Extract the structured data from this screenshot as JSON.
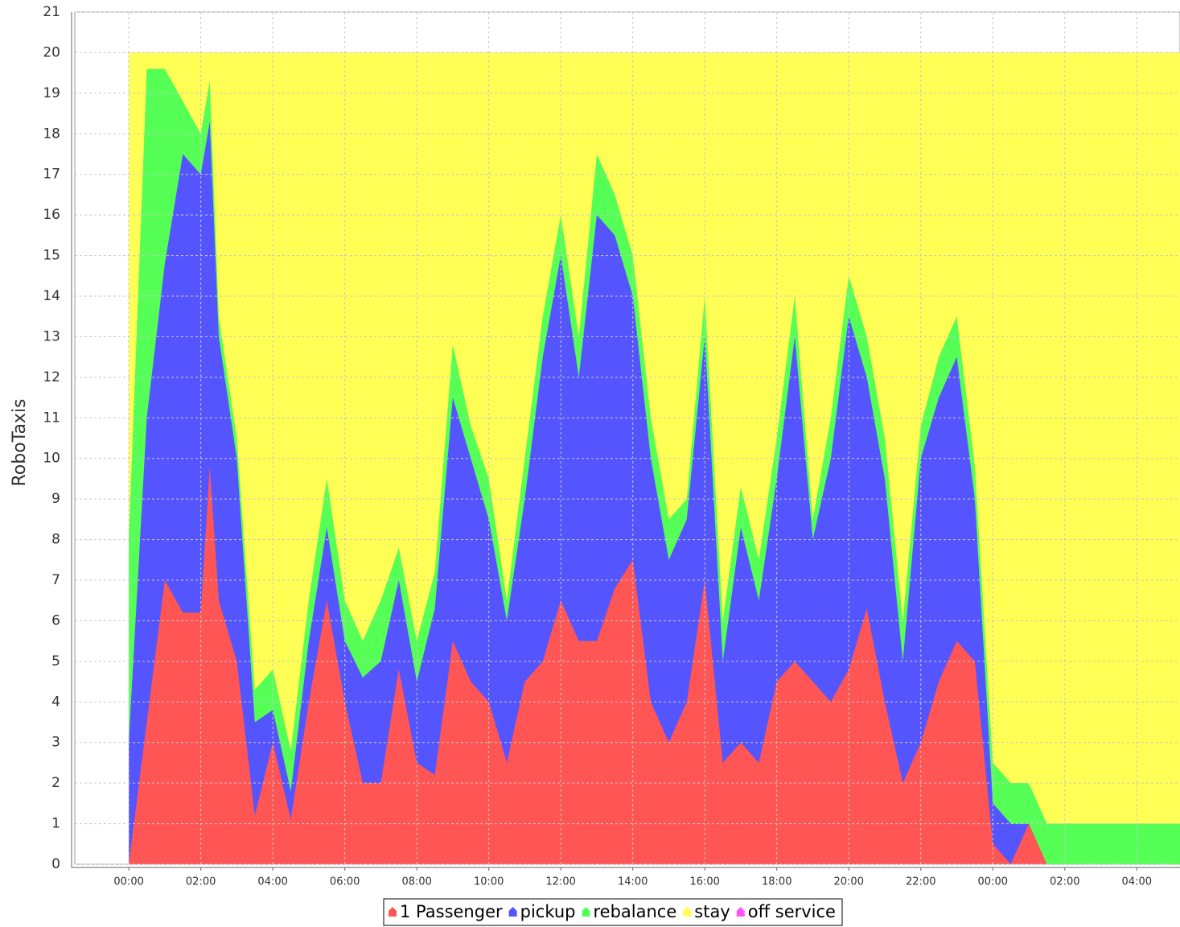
{
  "chart_data": {
    "type": "stacked-area",
    "y_label": "RoboTaxis",
    "x": [
      0,
      0.5,
      1,
      1.5,
      2,
      2.25,
      2.5,
      3,
      3.5,
      4,
      4.5,
      5,
      5.5,
      6,
      6.5,
      7,
      7.5,
      8,
      8.5,
      9,
      9.5,
      10,
      10.5,
      11,
      11.5,
      12,
      12.5,
      13,
      13.5,
      14,
      14.5,
      15,
      15.5,
      16,
      16.5,
      17,
      17.5,
      18,
      18.5,
      19,
      19.5,
      20,
      20.5,
      21,
      21.5,
      22,
      22.5,
      23,
      23.5,
      24,
      24.5,
      25,
      25.5,
      26,
      26.5,
      27,
      27.5,
      28,
      28.5,
      29,
      29.2
    ],
    "series": [
      {
        "name": "1 Passenger",
        "color": "#ff5555",
        "values": [
          0,
          3.5,
          7,
          6.2,
          6.2,
          9.8,
          6.5,
          5,
          1.2,
          3,
          1.1,
          4,
          6.5,
          4,
          2,
          2,
          4.8,
          2.5,
          2.2,
          5.5,
          4.5,
          4,
          2.5,
          4.5,
          5,
          6.5,
          5.5,
          5.5,
          6.8,
          7.5,
          4,
          3,
          4,
          7,
          2.5,
          3,
          2.5,
          4.5,
          5,
          4.5,
          4,
          4.8,
          6.3,
          4,
          2,
          3,
          4.5,
          5.5,
          5,
          0.5,
          0,
          1,
          0,
          0,
          0,
          0,
          0,
          0,
          0,
          0,
          0
        ]
      },
      {
        "name": "pickup",
        "color": "#5555ff",
        "values": [
          3,
          7.5,
          7.8,
          11.3,
          10.8,
          8.5,
          6.5,
          5,
          2.3,
          0.8,
          0.7,
          1.5,
          1.8,
          1.5,
          2.6,
          3,
          2.2,
          2,
          4.1,
          6,
          5.5,
          4.5,
          3.5,
          4.5,
          7.5,
          8.5,
          6.5,
          10.5,
          8.7,
          6.5,
          6,
          4.5,
          4.5,
          6,
          2.5,
          5.3,
          4,
          5,
          8,
          3.5,
          6,
          8.7,
          5.7,
          5.5,
          3,
          7,
          7,
          7,
          4,
          1,
          1,
          0,
          0,
          0,
          0,
          0,
          0,
          0,
          0,
          0,
          0
        ]
      },
      {
        "name": "rebalance",
        "color": "#55ff55",
        "values": [
          5,
          8.6,
          4.8,
          1.3,
          1,
          1,
          0.5,
          0.5,
          0.8,
          1,
          1,
          1,
          1.2,
          1,
          0.9,
          1.5,
          0.8,
          1,
          0.9,
          1.3,
          0.8,
          1,
          0.5,
          1,
          1,
          1,
          1,
          1.5,
          1,
          1,
          1,
          1,
          0.5,
          1,
          1,
          1,
          1,
          1,
          1,
          0.5,
          1,
          1,
          1,
          1,
          1,
          0.8,
          1,
          1,
          0.8,
          1,
          1,
          1,
          1,
          1,
          1,
          1,
          1,
          1,
          1,
          1,
          1
        ]
      },
      {
        "name": "stay",
        "color": "#ffff55",
        "values": [
          12,
          0.4,
          0.4,
          1.2,
          2,
          0.7,
          6.5,
          9.5,
          15.7,
          15.2,
          17.2,
          13.5,
          10.5,
          13.5,
          14.5,
          13.5,
          12.2,
          14.5,
          12.8,
          7.2,
          9.2,
          10.5,
          13.5,
          10,
          6.5,
          4,
          7,
          2.5,
          3.5,
          5,
          9,
          11.5,
          11,
          6,
          14,
          10.7,
          12.5,
          9.5,
          6,
          11.5,
          9,
          5.5,
          7,
          9.5,
          14,
          9.2,
          7.5,
          6.5,
          10.2,
          17.5,
          18,
          18,
          19,
          19,
          19,
          19,
          19,
          19,
          19,
          19,
          19
        ]
      },
      {
        "name": "off service",
        "color": "#ff55ff",
        "values": [
          0,
          0,
          0,
          0,
          0,
          0,
          0,
          0,
          0,
          0,
          0,
          0,
          0,
          0,
          0,
          0,
          0,
          0,
          0,
          0,
          0,
          0,
          0,
          0,
          0,
          0,
          0,
          0,
          0,
          0,
          0,
          0,
          0,
          0,
          0,
          0,
          0,
          0,
          0,
          0,
          0,
          0,
          0,
          0,
          0,
          0,
          0,
          0,
          0,
          0,
          0,
          0,
          0,
          0,
          0,
          0,
          0,
          0,
          0,
          0,
          0
        ]
      }
    ],
    "xlim": [
      -1.5,
      29.2
    ],
    "xticks": [
      {
        "value": 0,
        "label": "00:00"
      },
      {
        "value": 2,
        "label": "02:00"
      },
      {
        "value": 4,
        "label": "04:00"
      },
      {
        "value": 6,
        "label": "06:00"
      },
      {
        "value": 8,
        "label": "08:00"
      },
      {
        "value": 10,
        "label": "10:00"
      },
      {
        "value": 12,
        "label": "12:00"
      },
      {
        "value": 14,
        "label": "14:00"
      },
      {
        "value": 16,
        "label": "16:00"
      },
      {
        "value": 18,
        "label": "18:00"
      },
      {
        "value": 20,
        "label": "20:00"
      },
      {
        "value": 22,
        "label": "22:00"
      },
      {
        "value": 24,
        "label": "00:00"
      },
      {
        "value": 26,
        "label": "02:00"
      },
      {
        "value": 28,
        "label": "04:00"
      }
    ],
    "ylim": [
      0,
      21
    ],
    "yticks": [
      0,
      1,
      2,
      3,
      4,
      5,
      6,
      7,
      8,
      9,
      10,
      11,
      12,
      13,
      14,
      15,
      16,
      17,
      18,
      19,
      20,
      21
    ],
    "grid": true,
    "legend": "bottom"
  }
}
